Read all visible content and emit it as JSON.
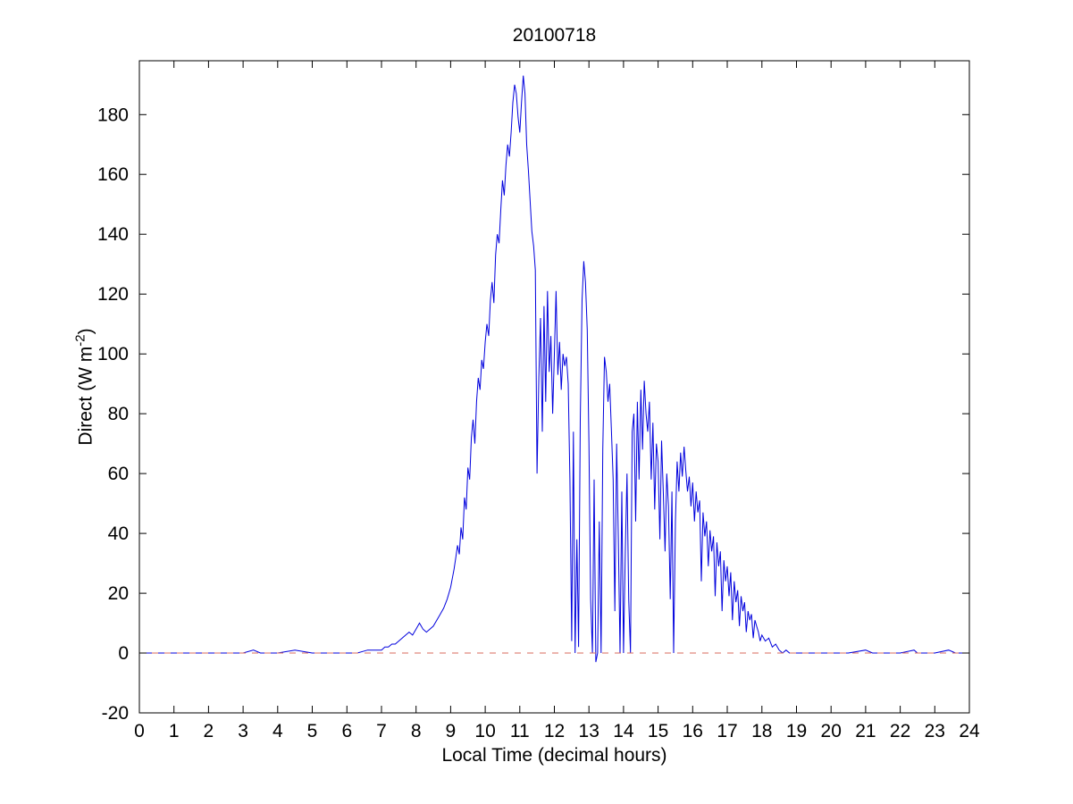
{
  "figure": {
    "title": "20100718",
    "xlabel": "Local Time (decimal hours)",
    "ylabel_pre": "Direct (W m",
    "ylabel_sup": "-2",
    "ylabel_post": ")",
    "background_color": "#ffffff",
    "axes_color": "#000000"
  },
  "chart_data": {
    "type": "line",
    "title": "20100718",
    "xlabel": "Local Time (decimal hours)",
    "ylabel": "Direct (W m^-2)",
    "xlim": [
      0,
      24
    ],
    "ylim": [
      -20,
      198
    ],
    "xticks": [
      0,
      1,
      2,
      3,
      4,
      5,
      6,
      7,
      8,
      9,
      10,
      11,
      12,
      13,
      14,
      15,
      16,
      17,
      18,
      19,
      20,
      21,
      22,
      23,
      24
    ],
    "yticks": [
      -20,
      0,
      20,
      40,
      60,
      80,
      100,
      120,
      140,
      160,
      180
    ],
    "grid": false,
    "legend": "none",
    "series": [
      {
        "name": "direct-irradiance",
        "color": "#0000dd",
        "line_style": "solid",
        "points": [
          [
            0,
            0
          ],
          [
            0.5,
            0
          ],
          [
            1,
            0
          ],
          [
            1.5,
            0
          ],
          [
            2,
            0
          ],
          [
            2.5,
            0
          ],
          [
            3,
            0
          ],
          [
            3.3,
            1
          ],
          [
            3.5,
            0
          ],
          [
            4,
            0
          ],
          [
            4.5,
            1
          ],
          [
            5,
            0
          ],
          [
            5.5,
            0
          ],
          [
            6,
            0
          ],
          [
            6.3,
            0
          ],
          [
            6.6,
            1
          ],
          [
            6.9,
            1
          ],
          [
            7.0,
            1
          ],
          [
            7.1,
            2
          ],
          [
            7.2,
            2
          ],
          [
            7.3,
            3
          ],
          [
            7.4,
            3
          ],
          [
            7.5,
            4
          ],
          [
            7.6,
            5
          ],
          [
            7.7,
            6
          ],
          [
            7.8,
            7
          ],
          [
            7.9,
            6
          ],
          [
            8.0,
            8
          ],
          [
            8.05,
            9
          ],
          [
            8.1,
            10
          ],
          [
            8.15,
            9
          ],
          [
            8.2,
            8
          ],
          [
            8.3,
            7
          ],
          [
            8.4,
            8
          ],
          [
            8.5,
            9
          ],
          [
            8.6,
            11
          ],
          [
            8.7,
            13
          ],
          [
            8.8,
            15
          ],
          [
            8.9,
            18
          ],
          [
            9.0,
            22
          ],
          [
            9.05,
            25
          ],
          [
            9.1,
            28
          ],
          [
            9.15,
            32
          ],
          [
            9.2,
            36
          ],
          [
            9.25,
            33
          ],
          [
            9.3,
            42
          ],
          [
            9.35,
            38
          ],
          [
            9.4,
            52
          ],
          [
            9.45,
            48
          ],
          [
            9.5,
            62
          ],
          [
            9.55,
            58
          ],
          [
            9.6,
            72
          ],
          [
            9.65,
            78
          ],
          [
            9.7,
            70
          ],
          [
            9.75,
            84
          ],
          [
            9.8,
            92
          ],
          [
            9.85,
            88
          ],
          [
            9.9,
            98
          ],
          [
            9.95,
            95
          ],
          [
            10.0,
            104
          ],
          [
            10.05,
            110
          ],
          [
            10.1,
            106
          ],
          [
            10.15,
            118
          ],
          [
            10.2,
            124
          ],
          [
            10.25,
            117
          ],
          [
            10.3,
            133
          ],
          [
            10.35,
            140
          ],
          [
            10.4,
            137
          ],
          [
            10.45,
            148
          ],
          [
            10.5,
            158
          ],
          [
            10.55,
            153
          ],
          [
            10.6,
            163
          ],
          [
            10.65,
            170
          ],
          [
            10.7,
            166
          ],
          [
            10.75,
            174
          ],
          [
            10.8,
            184
          ],
          [
            10.85,
            190
          ],
          [
            10.9,
            187
          ],
          [
            10.95,
            179
          ],
          [
            11.0,
            174
          ],
          [
            11.05,
            184
          ],
          [
            11.1,
            193
          ],
          [
            11.15,
            187
          ],
          [
            11.2,
            170
          ],
          [
            11.25,
            161
          ],
          [
            11.3,
            151
          ],
          [
            11.35,
            141
          ],
          [
            11.4,
            136
          ],
          [
            11.45,
            128
          ],
          [
            11.5,
            60
          ],
          [
            11.55,
            92
          ],
          [
            11.6,
            112
          ],
          [
            11.65,
            74
          ],
          [
            11.7,
            116
          ],
          [
            11.75,
            84
          ],
          [
            11.8,
            121
          ],
          [
            11.85,
            94
          ],
          [
            11.9,
            106
          ],
          [
            11.95,
            80
          ],
          [
            12.0,
            100
          ],
          [
            12.05,
            121
          ],
          [
            12.1,
            93
          ],
          [
            12.15,
            104
          ],
          [
            12.2,
            88
          ],
          [
            12.25,
            100
          ],
          [
            12.3,
            96
          ],
          [
            12.35,
            99
          ],
          [
            12.4,
            90
          ],
          [
            12.45,
            58
          ],
          [
            12.5,
            4
          ],
          [
            12.55,
            74
          ],
          [
            12.6,
            0
          ],
          [
            12.65,
            38
          ],
          [
            12.7,
            2
          ],
          [
            12.75,
            78
          ],
          [
            12.8,
            118
          ],
          [
            12.85,
            131
          ],
          [
            12.9,
            124
          ],
          [
            12.95,
            108
          ],
          [
            13.0,
            70
          ],
          [
            13.05,
            18
          ],
          [
            13.1,
            0
          ],
          [
            13.15,
            58
          ],
          [
            13.2,
            -3
          ],
          [
            13.25,
            0
          ],
          [
            13.3,
            44
          ],
          [
            13.35,
            0
          ],
          [
            13.4,
            68
          ],
          [
            13.45,
            99
          ],
          [
            13.5,
            94
          ],
          [
            13.55,
            84
          ],
          [
            13.6,
            90
          ],
          [
            13.65,
            74
          ],
          [
            13.7,
            58
          ],
          [
            13.75,
            14
          ],
          [
            13.8,
            70
          ],
          [
            13.85,
            38
          ],
          [
            13.9,
            0
          ],
          [
            13.95,
            54
          ],
          [
            14.0,
            0
          ],
          [
            14.05,
            34
          ],
          [
            14.1,
            60
          ],
          [
            14.15,
            18
          ],
          [
            14.2,
            0
          ],
          [
            14.25,
            74
          ],
          [
            14.3,
            80
          ],
          [
            14.35,
            44
          ],
          [
            14.4,
            84
          ],
          [
            14.45,
            58
          ],
          [
            14.5,
            88
          ],
          [
            14.55,
            68
          ],
          [
            14.6,
            91
          ],
          [
            14.65,
            80
          ],
          [
            14.7,
            74
          ],
          [
            14.75,
            84
          ],
          [
            14.8,
            58
          ],
          [
            14.85,
            77
          ],
          [
            14.9,
            48
          ],
          [
            14.95,
            70
          ],
          [
            15.0,
            64
          ],
          [
            15.05,
            38
          ],
          [
            15.1,
            71
          ],
          [
            15.15,
            54
          ],
          [
            15.2,
            34
          ],
          [
            15.25,
            60
          ],
          [
            15.3,
            49
          ],
          [
            15.35,
            18
          ],
          [
            15.4,
            54
          ],
          [
            15.45,
            0
          ],
          [
            15.5,
            44
          ],
          [
            15.55,
            64
          ],
          [
            15.6,
            54
          ],
          [
            15.65,
            67
          ],
          [
            15.7,
            59
          ],
          [
            15.75,
            69
          ],
          [
            15.8,
            61
          ],
          [
            15.85,
            54
          ],
          [
            15.9,
            59
          ],
          [
            15.95,
            49
          ],
          [
            16.0,
            57
          ],
          [
            16.05,
            44
          ],
          [
            16.1,
            54
          ],
          [
            16.15,
            47
          ],
          [
            16.2,
            51
          ],
          [
            16.25,
            24
          ],
          [
            16.3,
            47
          ],
          [
            16.35,
            39
          ],
          [
            16.4,
            44
          ],
          [
            16.45,
            29
          ],
          [
            16.5,
            41
          ],
          [
            16.55,
            34
          ],
          [
            16.6,
            39
          ],
          [
            16.65,
            19
          ],
          [
            16.7,
            37
          ],
          [
            16.75,
            29
          ],
          [
            16.8,
            34
          ],
          [
            16.85,
            14
          ],
          [
            16.9,
            31
          ],
          [
            16.95,
            24
          ],
          [
            17.0,
            29
          ],
          [
            17.05,
            19
          ],
          [
            17.1,
            27
          ],
          [
            17.15,
            11
          ],
          [
            17.2,
            24
          ],
          [
            17.25,
            17
          ],
          [
            17.3,
            21
          ],
          [
            17.35,
            9
          ],
          [
            17.4,
            19
          ],
          [
            17.45,
            14
          ],
          [
            17.5,
            17
          ],
          [
            17.55,
            7
          ],
          [
            17.6,
            14
          ],
          [
            17.65,
            11
          ],
          [
            17.7,
            13
          ],
          [
            17.75,
            5
          ],
          [
            17.8,
            11
          ],
          [
            17.85,
            9
          ],
          [
            17.9,
            7
          ],
          [
            17.95,
            4
          ],
          [
            18.0,
            6
          ],
          [
            18.1,
            4
          ],
          [
            18.2,
            5
          ],
          [
            18.3,
            2
          ],
          [
            18.4,
            3
          ],
          [
            18.5,
            1
          ],
          [
            18.6,
            0
          ],
          [
            18.7,
            1
          ],
          [
            18.8,
            0
          ],
          [
            19,
            0
          ],
          [
            19.5,
            0
          ],
          [
            20,
            0
          ],
          [
            20.5,
            0
          ],
          [
            21,
            1
          ],
          [
            21.2,
            0
          ],
          [
            21.5,
            0
          ],
          [
            22,
            0
          ],
          [
            22.4,
            1
          ],
          [
            22.5,
            0
          ],
          [
            23,
            0
          ],
          [
            23.4,
            1
          ],
          [
            23.6,
            0
          ],
          [
            23.85,
            0
          ]
        ]
      },
      {
        "name": "zero-reference",
        "color": "#d96b5e",
        "line_style": "dashed",
        "points": [
          [
            0,
            0
          ],
          [
            24,
            0
          ]
        ]
      }
    ]
  }
}
